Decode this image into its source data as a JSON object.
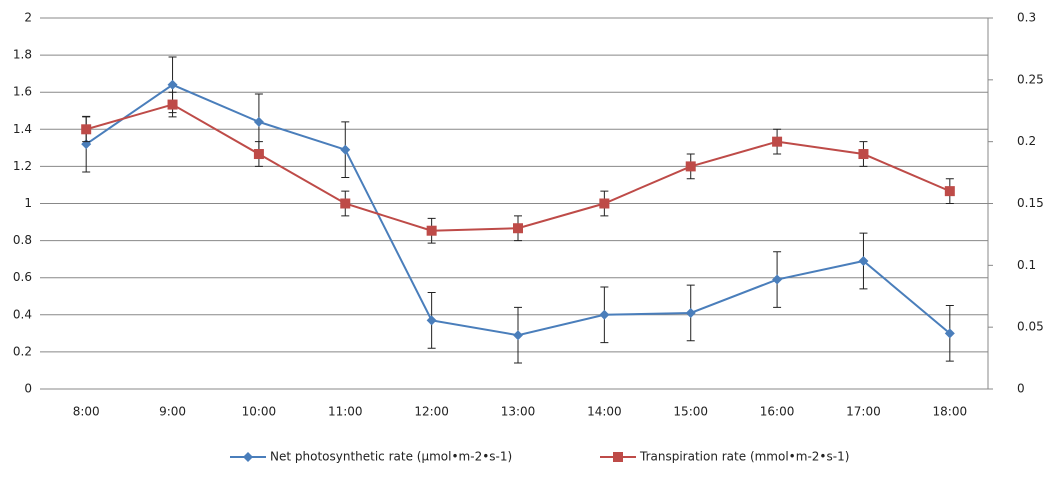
{
  "chart_data": {
    "type": "line",
    "categories": [
      "8:00",
      "9:00",
      "10:00",
      "11:00",
      "12:00",
      "13:00",
      "14:00",
      "15:00",
      "16:00",
      "17:00",
      "18:00"
    ],
    "series": [
      {
        "name": "Net photosynthetic rate (μmol•m-2•s-1)",
        "color": "#4a7ebb",
        "marker": "diamond",
        "values": [
          1.32,
          1.64,
          1.44,
          1.29,
          0.37,
          0.29,
          0.4,
          0.41,
          0.59,
          0.69,
          0.3
        ],
        "errors": [
          0.15,
          0.15,
          0.15,
          0.15,
          0.15,
          0.15,
          0.15,
          0.15,
          0.15,
          0.15,
          0.15
        ]
      },
      {
        "name": "Transpiration rate (mmol•m-2•s-1)",
        "color": "#be4b48",
        "marker": "square",
        "axis": "y2",
        "values": [
          0.21,
          0.23,
          0.19,
          0.15,
          0.128,
          0.13,
          0.15,
          0.18,
          0.2,
          0.19,
          0.16
        ],
        "errors": [
          0.01,
          0.01,
          0.01,
          0.01,
          0.01,
          0.01,
          0.01,
          0.01,
          0.01,
          0.01,
          0.01
        ]
      }
    ],
    "ylim": [
      0,
      2
    ],
    "yticks": [
      0,
      0.2,
      0.4,
      0.6,
      0.8,
      1,
      1.2,
      1.4,
      1.6,
      1.8,
      2
    ],
    "y2lim": [
      0,
      0.3
    ],
    "y2ticks": [
      0,
      0.05,
      0.1,
      0.15,
      0.2,
      0.25,
      0.3
    ],
    "grid": true,
    "legend": "bottom"
  }
}
